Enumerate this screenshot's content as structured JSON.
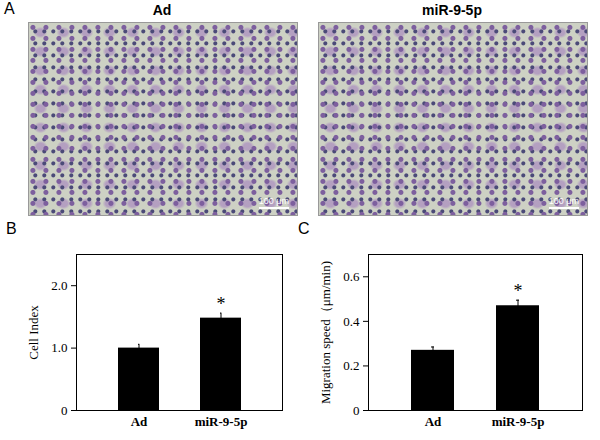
{
  "panel_a": {
    "panel_label": "A",
    "images": [
      {
        "title": "Ad",
        "scale_bar": "100 μm"
      },
      {
        "title": "miR-9-5p",
        "scale_bar": "100 μm"
      }
    ]
  },
  "chart_data": [
    {
      "type": "bar",
      "panel_label": "B",
      "y_label": "Cell Index",
      "categories": [
        "Ad",
        "miR-9-5p"
      ],
      "values": [
        1.0,
        1.48
      ],
      "errors": [
        0.06,
        0.08
      ],
      "significance": [
        null,
        "*"
      ],
      "color": "#000000",
      "ylim": [
        0,
        2.5
      ],
      "yticks": [
        0,
        {
          "value": 1,
          "label": "1.0"
        },
        {
          "value": 2,
          "label": "2.0"
        }
      ],
      "grid": false
    },
    {
      "type": "bar",
      "panel_label": "C",
      "y_label": "Migration speed（μm/min)",
      "categories": [
        "Ad",
        "miR-9-5p"
      ],
      "values": [
        0.27,
        0.47
      ],
      "errors": [
        0.015,
        0.025
      ],
      "significance": [
        null,
        "*"
      ],
      "color": "#000000",
      "ylim": [
        0,
        0.7
      ],
      "yticks": [
        0,
        0.2,
        0.4,
        0.6
      ],
      "grid": false
    }
  ]
}
